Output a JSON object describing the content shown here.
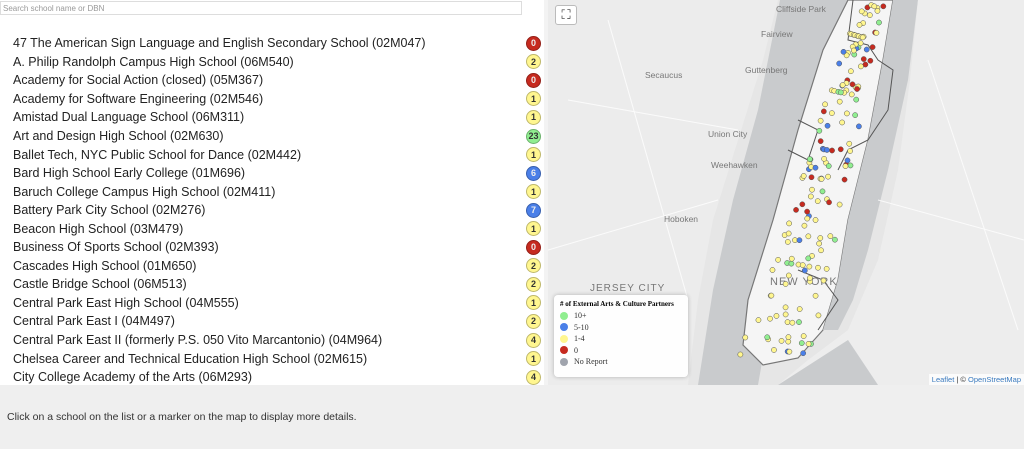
{
  "search": {
    "placeholder": "Search school name or DBN",
    "value": ""
  },
  "colors": {
    "10+": "#90ee90",
    "5-10": "#4a7fe8",
    "1-4": "#fff68f",
    "0": "#c62a1f",
    "No Report": "#a0a4ad"
  },
  "schools": [
    {
      "name": "47 The American Sign Language and English Secondary School (02M047)",
      "count": "0",
      "cat": "0"
    },
    {
      "name": "A. Philip Randolph Campus High School (06M540)",
      "count": "2",
      "cat": "1-4"
    },
    {
      "name": "Academy for Social Action (closed) (05M367)",
      "count": "0",
      "cat": "0"
    },
    {
      "name": "Academy for Software Engineering (02M546)",
      "count": "1",
      "cat": "1-4"
    },
    {
      "name": "Amistad Dual Language School (06M311)",
      "count": "1",
      "cat": "1-4"
    },
    {
      "name": "Art and Design High School (02M630)",
      "count": "23",
      "cat": "10+"
    },
    {
      "name": "Ballet Tech, NYC Public School for Dance (02M442)",
      "count": "1",
      "cat": "1-4"
    },
    {
      "name": "Bard High School Early College (01M696)",
      "count": "6",
      "cat": "5-10"
    },
    {
      "name": "Baruch College Campus High School (02M411)",
      "count": "1",
      "cat": "1-4"
    },
    {
      "name": "Battery Park City School (02M276)",
      "count": "7",
      "cat": "5-10"
    },
    {
      "name": "Beacon High School (03M479)",
      "count": "1",
      "cat": "1-4"
    },
    {
      "name": "Business Of Sports School (02M393)",
      "count": "0",
      "cat": "0"
    },
    {
      "name": "Cascades High School (01M650)",
      "count": "2",
      "cat": "1-4"
    },
    {
      "name": "Castle Bridge School (06M513)",
      "count": "2",
      "cat": "1-4"
    },
    {
      "name": "Central Park East High School (04M555)",
      "count": "1",
      "cat": "1-4"
    },
    {
      "name": "Central Park East I (04M497)",
      "count": "2",
      "cat": "1-4"
    },
    {
      "name": "Central Park East II (formerly P.S. 050 Vito Marcantonio) (04M964)",
      "count": "4",
      "cat": "1-4"
    },
    {
      "name": "Chelsea Career and Technical Education High School (02M615)",
      "count": "1",
      "cat": "1-4"
    },
    {
      "name": "City College Academy of the Arts (06M293)",
      "count": "4",
      "cat": "1-4"
    }
  ],
  "map": {
    "fullscreen_icon": "expand-icon",
    "labels": {
      "cliffside": "Cliffside Park",
      "fairview": "Fairview",
      "secaucus": "Secaucus",
      "guttenberg": "Guttenberg",
      "union_city": "Union City",
      "weehawken": "Weehawken",
      "hoboken": "Hoboken",
      "jersey_city": "JERSEY CITY",
      "new_york": "NEW YORK"
    },
    "legend": {
      "title": "# of External Arts & Culture Partners",
      "items": [
        "10+",
        "5-10",
        "1-4",
        "0",
        "No Report"
      ]
    },
    "attribution": {
      "leaflet": "Leaflet",
      "sep": " | © ",
      "osm": "OpenStreetMap"
    }
  },
  "details": {
    "message": "Click on a school on the list or a marker on the map to display more details."
  }
}
